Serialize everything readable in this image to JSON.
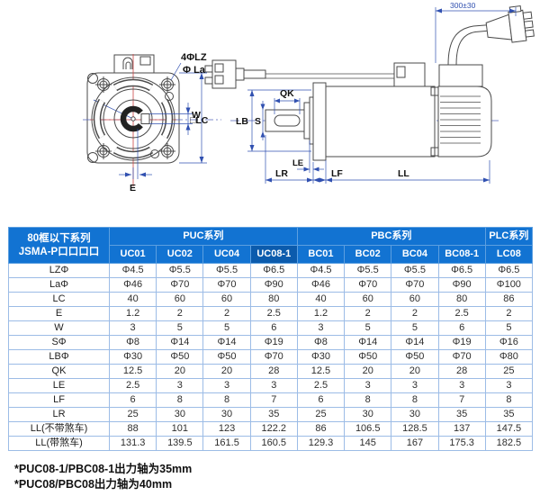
{
  "drawing": {
    "front_labels": {
      "holes": "4ΦLZ",
      "pilot": "Φ La",
      "w": "W",
      "lc": "□LC",
      "e": "E"
    },
    "side_labels": {
      "qk": "QK",
      "s": "S",
      "lb": "LB",
      "le": "LE",
      "lr": "LR",
      "lf": "LF",
      "ll": "LL",
      "cable": "300±30"
    }
  },
  "table": {
    "corner": {
      "line1": "80框以下系列",
      "line2": "JSMA-P口口口口"
    },
    "groups": [
      {
        "label": "PUC系列",
        "span": 4
      },
      {
        "label": "PBC系列",
        "span": 4
      },
      {
        "label": "PLC系列",
        "span": 1
      }
    ],
    "models": [
      "UC01",
      "UC02",
      "UC04",
      "UC08-1",
      "BC01",
      "BC02",
      "BC04",
      "BC08-1",
      "LC08"
    ],
    "highlight_model": "UC08-1",
    "rows": [
      {
        "label": "LZΦ",
        "values": [
          "Φ4.5",
          "Φ5.5",
          "Φ5.5",
          "Φ6.5",
          "Φ4.5",
          "Φ5.5",
          "Φ5.5",
          "Φ6.5",
          "Φ6.5"
        ]
      },
      {
        "label": "LaΦ",
        "values": [
          "Φ46",
          "Φ70",
          "Φ70",
          "Φ90",
          "Φ46",
          "Φ70",
          "Φ70",
          "Φ90",
          "Φ100"
        ]
      },
      {
        "label": "LC",
        "values": [
          "40",
          "60",
          "60",
          "80",
          "40",
          "60",
          "60",
          "80",
          "86"
        ]
      },
      {
        "label": "E",
        "values": [
          "1.2",
          "2",
          "2",
          "2.5",
          "1.2",
          "2",
          "2",
          "2.5",
          "2"
        ]
      },
      {
        "label": "W",
        "values": [
          "3",
          "5",
          "5",
          "6",
          "3",
          "5",
          "5",
          "6",
          "5"
        ]
      },
      {
        "label": "SΦ",
        "values": [
          "Φ8",
          "Φ14",
          "Φ14",
          "Φ19",
          "Φ8",
          "Φ14",
          "Φ14",
          "Φ19",
          "Φ16"
        ]
      },
      {
        "label": "LBΦ",
        "values": [
          "Φ30",
          "Φ50",
          "Φ50",
          "Φ70",
          "Φ30",
          "Φ50",
          "Φ50",
          "Φ70",
          "Φ80"
        ]
      },
      {
        "label": "QK",
        "values": [
          "12.5",
          "20",
          "20",
          "28",
          "12.5",
          "20",
          "20",
          "28",
          "25"
        ]
      },
      {
        "label": "LE",
        "values": [
          "2.5",
          "3",
          "3",
          "3",
          "2.5",
          "3",
          "3",
          "3",
          "3"
        ]
      },
      {
        "label": "LF",
        "values": [
          "6",
          "8",
          "8",
          "7",
          "6",
          "8",
          "8",
          "7",
          "8"
        ]
      },
      {
        "label": "LR",
        "values": [
          "25",
          "30",
          "30",
          "35",
          "25",
          "30",
          "30",
          "35",
          "35"
        ]
      },
      {
        "label": "LL(不带煞车)",
        "values": [
          "88",
          "101",
          "123",
          "122.2",
          "86",
          "106.5",
          "128.5",
          "137",
          "147.5"
        ]
      },
      {
        "label": "LL(带煞车)",
        "values": [
          "131.3",
          "139.5",
          "161.5",
          "160.5",
          "129.3",
          "145",
          "167",
          "175.3",
          "182.5"
        ]
      }
    ]
  },
  "notes": [
    "*PUC08-1/PBC08-1出力轴为35mm",
    "*PUC08/PBC08出力轴为40mm"
  ],
  "colors": {
    "header_blue": "#1273D2",
    "header_blue_dark": "#0B5BAD",
    "grid": "#9CBCE6",
    "dim_blue": "#3050B0",
    "center_red": "#CC4444"
  }
}
